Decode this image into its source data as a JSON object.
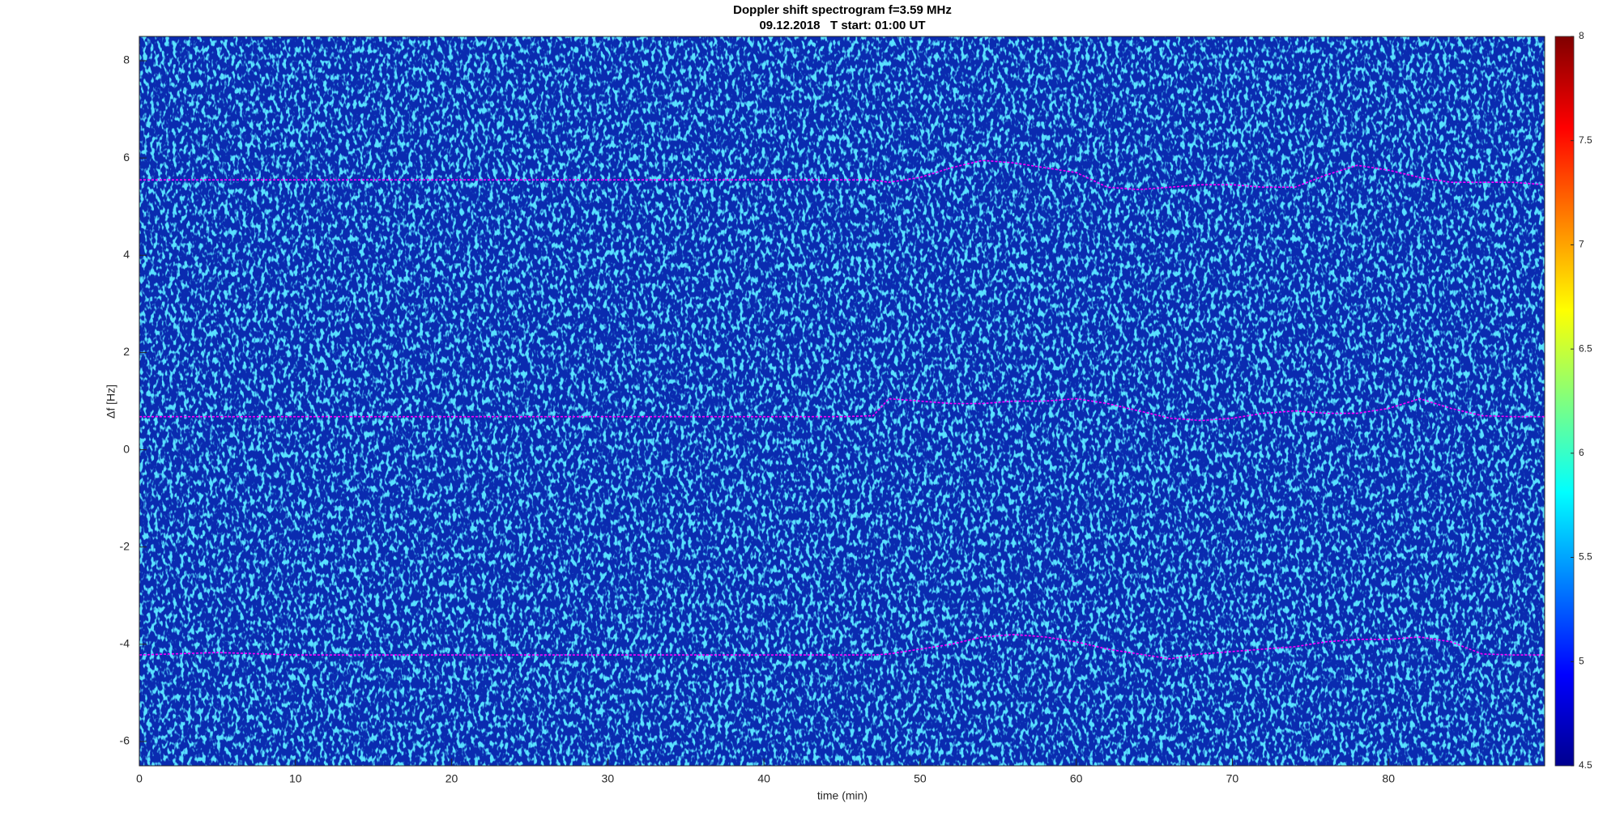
{
  "chart_data": {
    "type": "spectrogram",
    "title": "Doppler shift spectrogram f=3.59 MHz",
    "subtitle": "09.12.2018   T start: 01:00 UT",
    "xlabel": "time (min)",
    "ylabel": "Δf [Hz]",
    "xlim": [
      0,
      90
    ],
    "xticks": [
      0,
      10,
      20,
      30,
      40,
      50,
      60,
      70,
      80
    ],
    "ylim": [
      -6.5,
      8.5
    ],
    "yticks": [
      -6,
      -4,
      -2,
      0,
      2,
      4,
      6,
      8
    ],
    "x": [
      0,
      5,
      10,
      15,
      20,
      25,
      30,
      35,
      40,
      45,
      47,
      48,
      50,
      52,
      54,
      56,
      58,
      60,
      62,
      64,
      66,
      68,
      70,
      72,
      74,
      76,
      78,
      80,
      82,
      84,
      86,
      88,
      90
    ],
    "series": [
      {
        "color": "#ff00ff",
        "values": [
          5.55,
          5.55,
          5.55,
          5.55,
          5.55,
          5.55,
          5.55,
          5.55,
          5.55,
          5.55,
          5.55,
          5.5,
          5.6,
          5.8,
          5.95,
          5.9,
          5.8,
          5.7,
          5.4,
          5.35,
          5.4,
          5.45,
          5.45,
          5.4,
          5.4,
          5.65,
          5.85,
          5.75,
          5.6,
          5.5,
          5.5,
          5.5,
          5.45
        ]
      },
      {
        "color": "#ff00ff",
        "values": [
          0.68,
          0.68,
          0.68,
          0.68,
          0.68,
          0.68,
          0.68,
          0.68,
          0.68,
          0.68,
          0.7,
          1.05,
          1.0,
          0.95,
          0.95,
          1.0,
          1.0,
          1.05,
          0.95,
          0.8,
          0.65,
          0.6,
          0.65,
          0.75,
          0.8,
          0.75,
          0.75,
          0.85,
          1.05,
          0.85,
          0.7,
          0.68,
          0.68
        ]
      },
      {
        "color": "#ff00ff",
        "values": [
          -4.22,
          -4.17,
          -4.22,
          -4.22,
          -4.22,
          -4.22,
          -4.22,
          -4.22,
          -4.22,
          -4.22,
          -4.22,
          -4.2,
          -4.1,
          -4.0,
          -3.85,
          -3.8,
          -3.85,
          -3.95,
          -4.1,
          -4.2,
          -4.3,
          -4.2,
          -4.15,
          -4.1,
          -4.05,
          -3.95,
          -3.9,
          -3.9,
          -3.85,
          -3.95,
          -4.2,
          -4.22,
          -4.22
        ]
      }
    ],
    "colorbar": {
      "colormap": "jet",
      "ylim": [
        4.5,
        8
      ],
      "yticks": [
        4.5,
        5,
        5.5,
        6,
        6.5,
        7,
        7.5,
        8
      ]
    }
  }
}
